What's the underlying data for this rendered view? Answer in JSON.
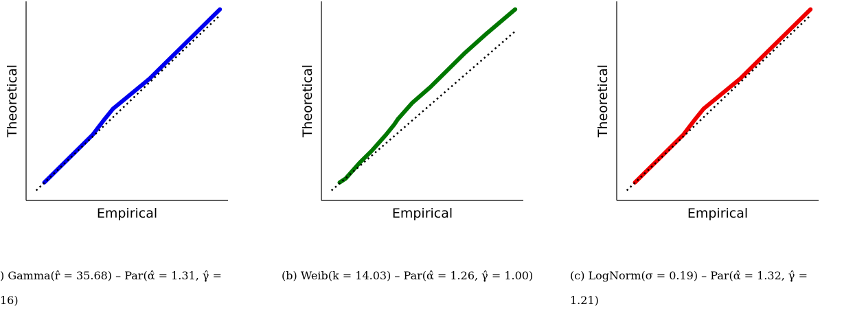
{
  "panels": [
    {
      "xlabel": "Empirical",
      "ylabel": "Theoretical",
      "color": "#0000ee",
      "caption_lines": [
        ") Gamma(r̂ = 35.68) – Par(α̂ = 1.31, γ̂ =",
        "16)"
      ]
    },
    {
      "xlabel": "Empirical",
      "ylabel": "Theoretical",
      "color": "#007700",
      "caption_lines": [
        "(b) Weib(k = 14.03) – Par(α̂ = 1.26, γ̂ = 1.00)"
      ]
    },
    {
      "xlabel": "Empirical",
      "ylabel": "Theoretical",
      "color": "#ee0000",
      "caption_lines": [
        "(c) LogNorm(σ = 0.19) – Par(α̂ = 1.32, γ̂ =",
        "1.21)"
      ]
    }
  ],
  "chart_data": [
    {
      "type": "line",
      "title": "",
      "xlabel": "Empirical",
      "ylabel": "Theoretical",
      "grid": false,
      "xlim": [
        0,
        1
      ],
      "ylim": [
        0,
        1
      ],
      "series": [
        {
          "color": "#0000ee",
          "style": "solid",
          "x": [
            0.09,
            0.12,
            0.19,
            0.25,
            0.33,
            0.36,
            0.39,
            0.43,
            0.49,
            0.55,
            0.61,
            0.73,
            0.85,
            0.96
          ],
          "y": [
            0.09,
            0.12,
            0.19,
            0.25,
            0.33,
            0.37,
            0.41,
            0.46,
            0.51,
            0.56,
            0.61,
            0.73,
            0.85,
            0.96
          ]
        },
        {
          "color": "#000000",
          "style": "dotted",
          "x": [
            0.05,
            0.96
          ],
          "y": [
            0.05,
            0.93
          ]
        }
      ]
    },
    {
      "type": "line",
      "title": "",
      "xlabel": "Empirical",
      "ylabel": "Theoretical",
      "grid": false,
      "xlim": [
        0,
        1
      ],
      "ylim": [
        0,
        1
      ],
      "series": [
        {
          "color": "#007700",
          "style": "solid",
          "x": [
            0.09,
            0.12,
            0.19,
            0.25,
            0.32,
            0.36,
            0.38,
            0.45,
            0.54,
            0.62,
            0.71,
            0.82,
            0.96
          ],
          "y": [
            0.09,
            0.11,
            0.19,
            0.25,
            0.33,
            0.38,
            0.41,
            0.49,
            0.57,
            0.65,
            0.74,
            0.84,
            0.96
          ]
        },
        {
          "color": "#000000",
          "style": "dotted",
          "x": [
            0.05,
            0.96
          ],
          "y": [
            0.05,
            0.85
          ]
        }
      ]
    },
    {
      "type": "line",
      "title": "",
      "xlabel": "Empirical",
      "ylabel": "Theoretical",
      "grid": false,
      "xlim": [
        0,
        1
      ],
      "ylim": [
        0,
        1
      ],
      "series": [
        {
          "color": "#ee0000",
          "style": "solid",
          "x": [
            0.09,
            0.12,
            0.19,
            0.25,
            0.33,
            0.36,
            0.39,
            0.43,
            0.49,
            0.55,
            0.61,
            0.73,
            0.85,
            0.96
          ],
          "y": [
            0.09,
            0.12,
            0.19,
            0.25,
            0.33,
            0.37,
            0.41,
            0.46,
            0.51,
            0.56,
            0.61,
            0.73,
            0.85,
            0.96
          ]
        },
        {
          "color": "#000000",
          "style": "dotted",
          "x": [
            0.05,
            0.96
          ],
          "y": [
            0.05,
            0.93
          ]
        }
      ]
    }
  ]
}
